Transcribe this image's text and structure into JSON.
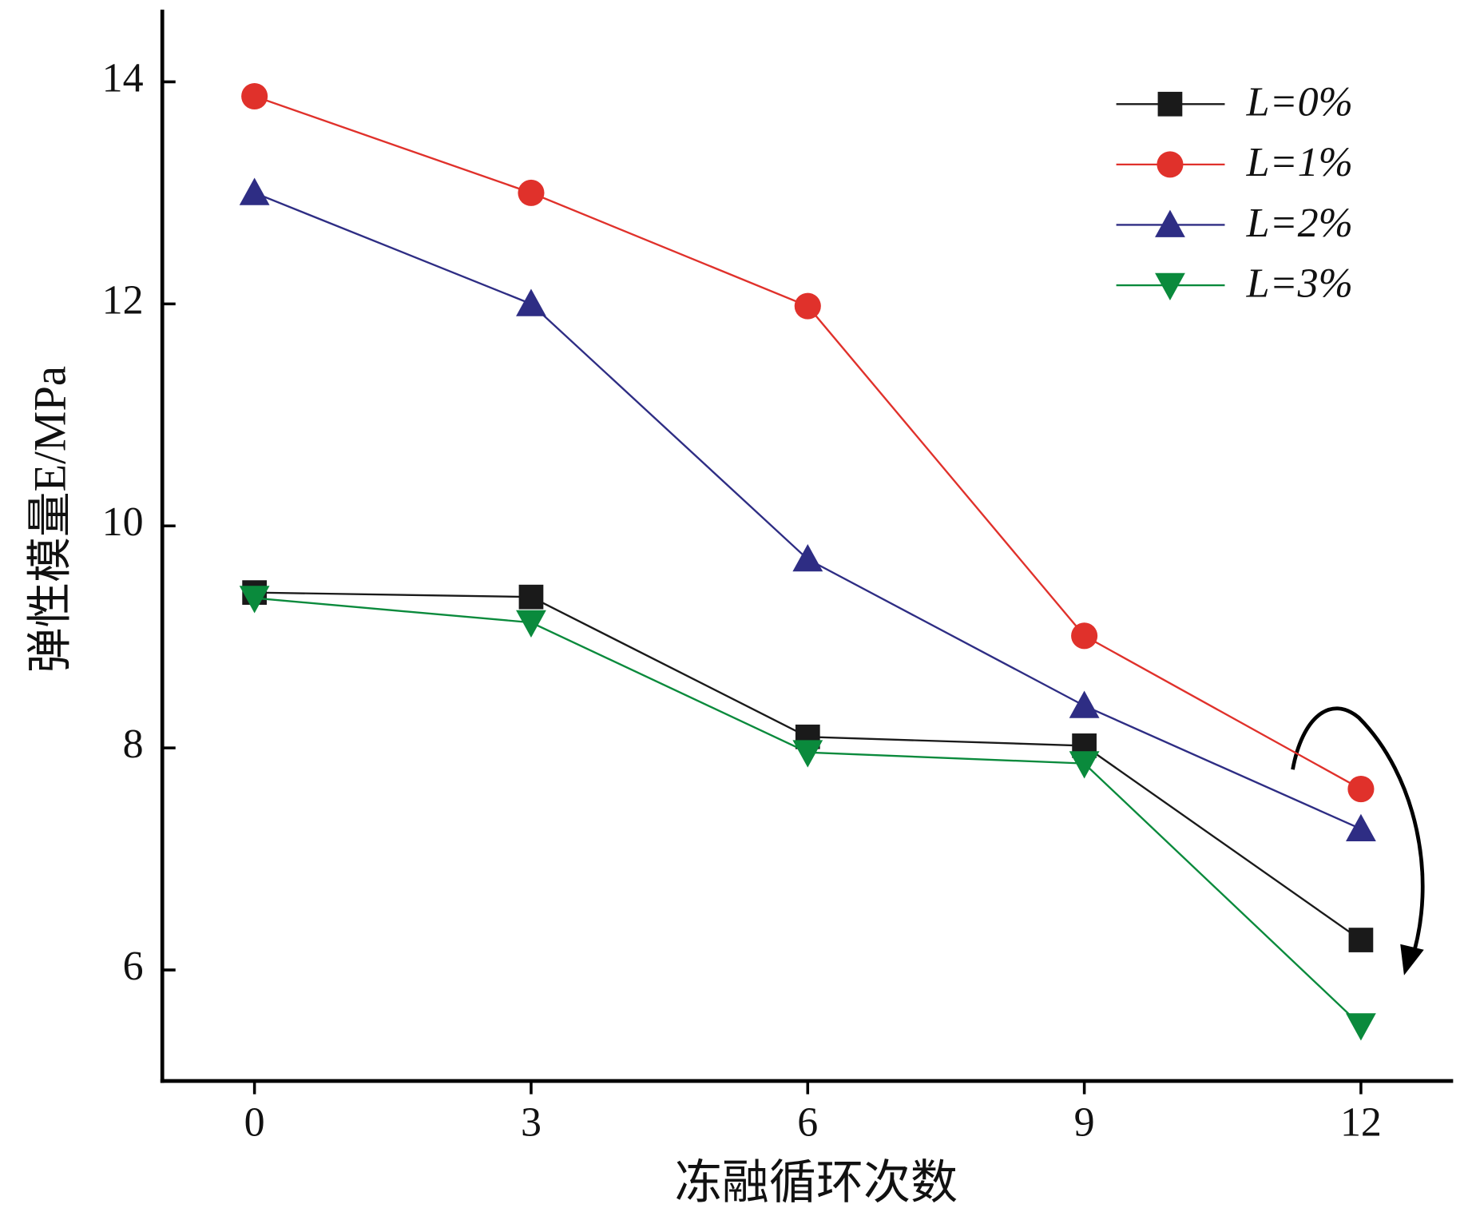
{
  "chart_data": {
    "type": "line",
    "xlabel": "冻融循环次数",
    "ylabel": "弹性模量E/MPa",
    "x": [
      0,
      3,
      6,
      9,
      12
    ],
    "xlim": [
      -1,
      13
    ],
    "xticks": [
      0,
      3,
      6,
      9,
      12
    ],
    "ylim": [
      5,
      14.65
    ],
    "yticks": [
      6,
      8,
      10,
      12,
      14
    ],
    "legend": "upper right",
    "series": [
      {
        "name": "L=0%",
        "color": "#1a1a1a",
        "marker": "square",
        "values": [
          9.4,
          9.36,
          8.1,
          8.02,
          6.27
        ]
      },
      {
        "name": "L=1%",
        "color": "#e0312b",
        "marker": "circle",
        "values": [
          13.87,
          13.0,
          11.98,
          9.01,
          7.63
        ]
      },
      {
        "name": "L=2%",
        "color": "#2e2d84",
        "marker": "triangle-up",
        "values": [
          13.0,
          12.0,
          9.7,
          8.38,
          7.27
        ]
      },
      {
        "name": "L=3%",
        "color": "#0a8a3c",
        "marker": "triangle-down",
        "values": [
          9.35,
          9.13,
          7.96,
          7.86,
          5.5
        ]
      }
    ]
  }
}
